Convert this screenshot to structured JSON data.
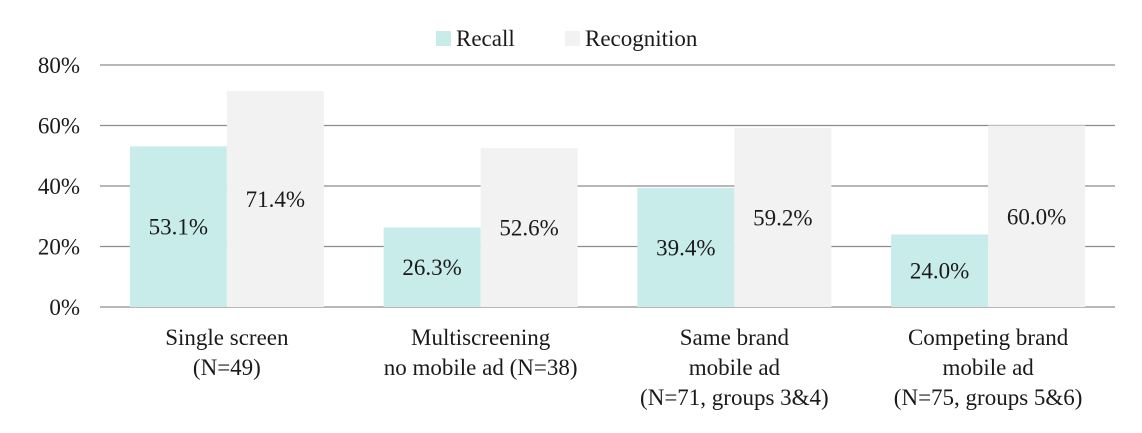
{
  "chart_data": {
    "type": "bar",
    "title": "",
    "xlabel": "",
    "ylabel": "",
    "ylim": [
      0,
      80
    ],
    "yticks": [
      {
        "value": 0,
        "label": "0%"
      },
      {
        "value": 20,
        "label": "20%"
      },
      {
        "value": 40,
        "label": "40%"
      },
      {
        "value": 60,
        "label": "60%"
      },
      {
        "value": 80,
        "label": "80%"
      }
    ],
    "grid": true,
    "legend_position": "top",
    "categories": [
      [
        "Single screen",
        "(N=49)"
      ],
      [
        "Multiscreening",
        "no mobile ad (N=38)"
      ],
      [
        "Same brand",
        "mobile ad",
        "(N=71, groups 3&4)"
      ],
      [
        "Competing brand",
        "mobile ad",
        "(N=75, groups 5&6)"
      ]
    ],
    "series": [
      {
        "name": "Recall",
        "color": "#c8ecea",
        "values": [
          53.1,
          26.3,
          39.4,
          24.0
        ],
        "labels": [
          "53.1%",
          "26.3%",
          "39.4%",
          "24.0%"
        ]
      },
      {
        "name": "Recognition",
        "color": "#f2f2f2",
        "values": [
          71.4,
          52.6,
          59.2,
          60.0
        ],
        "labels": [
          "71.4%",
          "52.6%",
          "59.2%",
          "60.0%"
        ]
      }
    ]
  }
}
